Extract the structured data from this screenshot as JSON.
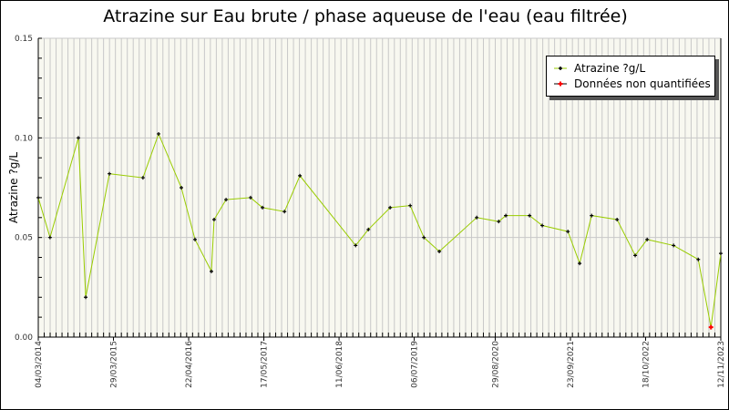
{
  "chart_data": {
    "type": "line",
    "title": "Atrazine sur Eau brute / phase aqueuse de l'eau (eau filtrée)",
    "xlabel": "",
    "ylabel": "Atrazine ?g/L",
    "ylim": [
      0,
      0.15
    ],
    "xlim": [
      "2014-03-04",
      "2023-11-12"
    ],
    "grid": true,
    "legend_position": "top-right",
    "yticks": [
      "0.00",
      "0.05",
      "0.10",
      "0.15"
    ],
    "xticks": [
      {
        "date": "2014-03-04",
        "label": "04/03/2014"
      },
      {
        "date": "2015-03-29",
        "label": "29/03/2015"
      },
      {
        "date": "2016-04-22",
        "label": "22/04/2016"
      },
      {
        "date": "2017-05-17",
        "label": "17/05/2017"
      },
      {
        "date": "2018-06-11",
        "label": "11/06/2018"
      },
      {
        "date": "2019-07-06",
        "label": "06/07/2019"
      },
      {
        "date": "2020-08-29",
        "label": "29/08/2020"
      },
      {
        "date": "2021-09-23",
        "label": "23/09/2021"
      },
      {
        "date": "2022-10-18",
        "label": "18/10/2022"
      },
      {
        "date": "2023-11-12",
        "label": "12/11/2023"
      }
    ],
    "series": [
      {
        "name": "Atrazine ?g/L",
        "line_color": "#99cc00",
        "marker_color": "#000000",
        "points": [
          [
            "2014-03-04",
            0.07
          ],
          [
            "2014-05-04",
            0.05
          ],
          [
            "2014-09-28",
            0.1
          ],
          [
            "2014-11-05",
            0.02
          ],
          [
            "2015-03-08",
            0.082
          ],
          [
            "2015-08-29",
            0.08
          ],
          [
            "2015-11-18",
            0.102
          ],
          [
            "2016-03-15",
            0.075
          ],
          [
            "2016-05-25",
            0.049
          ],
          [
            "2016-08-18",
            0.033
          ],
          [
            "2016-09-01",
            0.059
          ],
          [
            "2016-11-02",
            0.069
          ],
          [
            "2017-03-09",
            0.07
          ],
          [
            "2017-05-10",
            0.065
          ],
          [
            "2017-09-01",
            0.063
          ],
          [
            "2017-11-20",
            0.081
          ],
          [
            "2018-09-05",
            0.046
          ],
          [
            "2018-11-10",
            0.054
          ],
          [
            "2019-03-03",
            0.065
          ],
          [
            "2019-06-15",
            0.066
          ],
          [
            "2019-08-25",
            0.05
          ],
          [
            "2019-11-13",
            0.043
          ],
          [
            "2020-05-25",
            0.06
          ],
          [
            "2020-09-16",
            0.058
          ],
          [
            "2020-10-23",
            0.061
          ],
          [
            "2021-02-23",
            0.061
          ],
          [
            "2021-04-30",
            0.056
          ],
          [
            "2021-09-10",
            0.053
          ],
          [
            "2021-11-10",
            0.037
          ],
          [
            "2022-01-11",
            0.061
          ],
          [
            "2022-05-23",
            0.059
          ],
          [
            "2022-08-25",
            0.041
          ],
          [
            "2022-10-26",
            0.049
          ],
          [
            "2023-03-12",
            0.046
          ],
          [
            "2023-07-18",
            0.039
          ],
          [
            "2023-09-22",
            0.005
          ],
          [
            "2023-11-12",
            0.042
          ]
        ]
      },
      {
        "name": "Données non quantifiées",
        "marker_color": "#ff0000",
        "points": [
          [
            "2023-09-22",
            0.005
          ]
        ]
      }
    ]
  }
}
